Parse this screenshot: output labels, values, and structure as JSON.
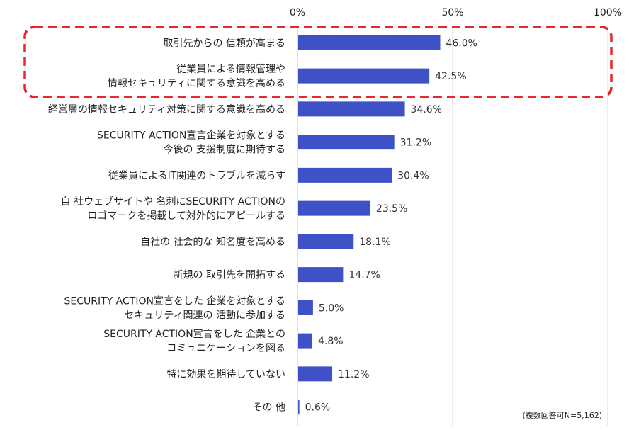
{
  "chart_data": {
    "type": "bar",
    "orientation": "horizontal",
    "xlim": [
      0,
      100
    ],
    "x_ticks": [
      "0%",
      "50%",
      "100%"
    ],
    "grid": true,
    "bar_color": "#3f51c6",
    "highlight_color": "#e8262b",
    "categories": [
      [
        "取引先からの 信頼が高まる"
      ],
      [
        "従業員による情報管理や",
        "情報セキュリティに関する意識を高める"
      ],
      [
        "経営層の情報セキュリティ対策に関する意識を高める"
      ],
      [
        "SECURITY ACTION宣言企業を対象とする",
        "今後の 支援制度に期待する"
      ],
      [
        "従業員によるIT関連のトラブルを減らす"
      ],
      [
        "自 社ウェブサイトや 名刺にSECURITY ACTIONの",
        "ロゴマークを掲載して対外的にアピールする"
      ],
      [
        "自社の 社会的な 知名度を高める"
      ],
      [
        "新規の 取引先を開拓する"
      ],
      [
        "SECURITY ACTION宣言をした 企業を対象とする",
        "セキュリティ関連の 活動に参加する"
      ],
      [
        "SECURITY ACTION宣言をした 企業との",
        "コミュニケーションを図る"
      ],
      [
        "特に効果を期待していない"
      ],
      [
        "その 他"
      ]
    ],
    "values": [
      46.0,
      42.5,
      34.6,
      31.2,
      30.4,
      23.5,
      18.1,
      14.7,
      5.0,
      4.8,
      11.2,
      0.6
    ],
    "value_labels": [
      "46.0%",
      "42.5%",
      "34.6%",
      "31.2%",
      "30.4%",
      "23.5%",
      "18.1%",
      "14.7%",
      "5.0%",
      "4.8%",
      "11.2%",
      "0.6%"
    ],
    "highlighted_indices": [
      0,
      1
    ],
    "note": "(複数回答可N=5,162)"
  }
}
